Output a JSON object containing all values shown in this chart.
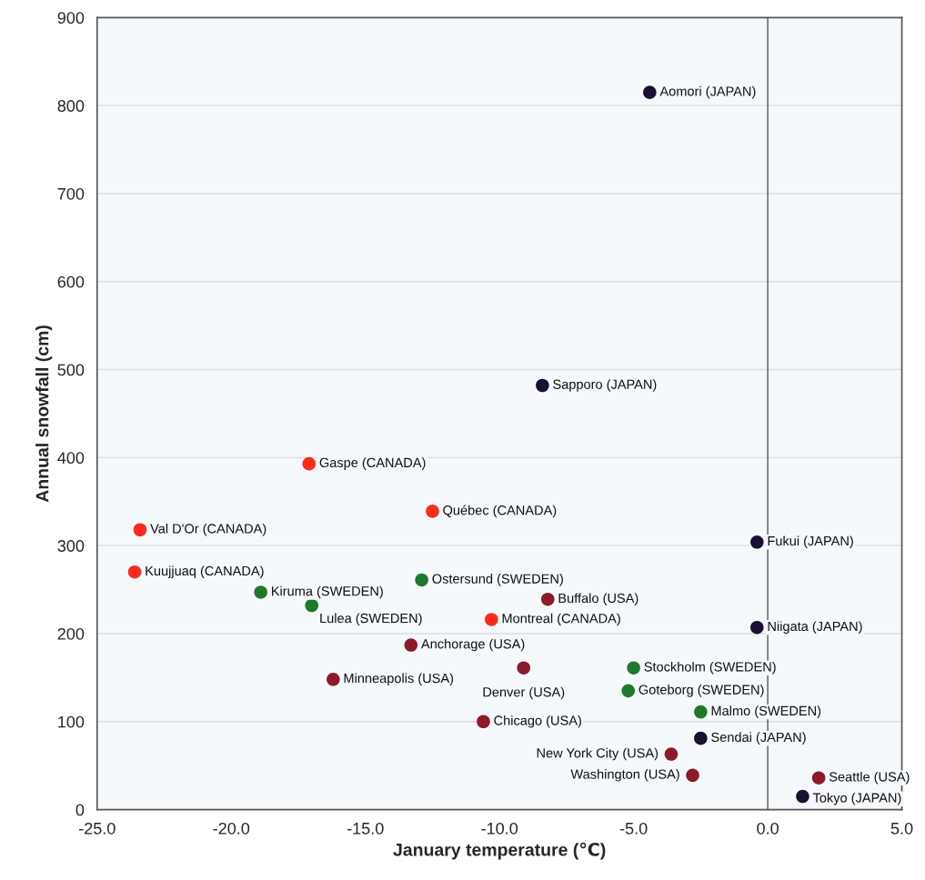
{
  "chart_data": {
    "type": "scatter",
    "xlabel": "January temperature (℃)",
    "ylabel": "Annual snowfall (cm)",
    "xlim": [
      -25,
      5
    ],
    "ylim": [
      0,
      900
    ],
    "xticks": [
      {
        "value": -25,
        "label": "-25.0"
      },
      {
        "value": -20,
        "label": "-20.0"
      },
      {
        "value": -15,
        "label": "-15.0"
      },
      {
        "value": -10,
        "label": "-10.0"
      },
      {
        "value": -5,
        "label": "-5.0"
      },
      {
        "value": 0,
        "label": "0.0"
      },
      {
        "value": 5,
        "label": "5.0"
      }
    ],
    "yticks": [
      0,
      100,
      200,
      300,
      400,
      500,
      600,
      700,
      800,
      900
    ],
    "grid": "y",
    "marker": "circle",
    "ref_lines": [
      {
        "axis": "x",
        "value": 0,
        "color": "#555555"
      }
    ],
    "series": [
      {
        "color": "#1a1030",
        "x": [
          -4.4,
          -8.4,
          -0.4,
          -0.4,
          -2.5,
          1.3
        ],
        "values": [
          815,
          482,
          304,
          207,
          81,
          15
        ]
      },
      {
        "color": "#ff2a1a",
        "x": [
          -17.1,
          -12.5,
          -23.4,
          -23.6,
          -10.3
        ],
        "values": [
          393,
          339,
          318,
          270,
          216
        ]
      },
      {
        "color": "#1e7a2a",
        "x": [
          -18.9,
          -17.0,
          -12.9,
          -5.0,
          -5.2,
          -2.5
        ],
        "values": [
          247,
          232,
          261,
          161,
          135,
          111
        ]
      },
      {
        "color": "#8b1a2a",
        "x": [
          -8.2,
          -13.3,
          -16.2,
          -9.1,
          -10.6,
          -3.6,
          -2.8,
          1.9
        ],
        "values": [
          239,
          187,
          148,
          161,
          100,
          63,
          39,
          36
        ]
      }
    ],
    "annotations": [
      {
        "text": "Aomori (JAPAN)",
        "x": -4.4,
        "y": 815
      },
      {
        "text": "Sapporo (JAPAN)",
        "x": -8.4,
        "y": 482
      },
      {
        "text": "Fukui (JAPAN)",
        "x": -0.4,
        "y": 304
      },
      {
        "text": "Niigata (JAPAN)",
        "x": -0.4,
        "y": 207
      },
      {
        "text": "Sendai (JAPAN)",
        "x": -2.5,
        "y": 81
      },
      {
        "text": "Tokyo (JAPAN)",
        "x": 1.3,
        "y": 15
      },
      {
        "text": "Gaspe (CANADA)",
        "x": -17.1,
        "y": 393
      },
      {
        "text": "Québec (CANADA)",
        "x": -12.5,
        "y": 339
      },
      {
        "text": "Val D'Or (CANADA)",
        "x": -23.4,
        "y": 318
      },
      {
        "text": "Kuujjuaq (CANADA)",
        "x": -23.6,
        "y": 270
      },
      {
        "text": "Montreal (CANADA)",
        "x": -10.3,
        "y": 216
      },
      {
        "text": "Kiruma (SWEDEN)",
        "x": -18.9,
        "y": 247
      },
      {
        "text": "Lulea (SWEDEN)",
        "x": -17.0,
        "y": 232
      },
      {
        "text": "Ostersund (SWEDEN)",
        "x": -12.9,
        "y": 261
      },
      {
        "text": "Stockholm (SWEDEN)",
        "x": -5.0,
        "y": 161
      },
      {
        "text": "Goteborg (SWEDEN)",
        "x": -5.2,
        "y": 135
      },
      {
        "text": "Malmo (SWEDEN)",
        "x": -2.5,
        "y": 111
      },
      {
        "text": "Buffalo (USA)",
        "x": -8.2,
        "y": 239
      },
      {
        "text": "Anchorage (USA)",
        "x": -13.3,
        "y": 187
      },
      {
        "text": "Minneapolis (USA)",
        "x": -16.2,
        "y": 148
      },
      {
        "text": "Denver (USA)",
        "x": -9.1,
        "y": 161
      },
      {
        "text": "Chicago (USA)",
        "x": -10.6,
        "y": 100
      },
      {
        "text": "New York City (USA)",
        "x": -3.6,
        "y": 63
      },
      {
        "text": "Washington (USA)",
        "x": -2.8,
        "y": 39
      },
      {
        "text": "Seattle (USA)",
        "x": 1.9,
        "y": 36
      }
    ]
  }
}
